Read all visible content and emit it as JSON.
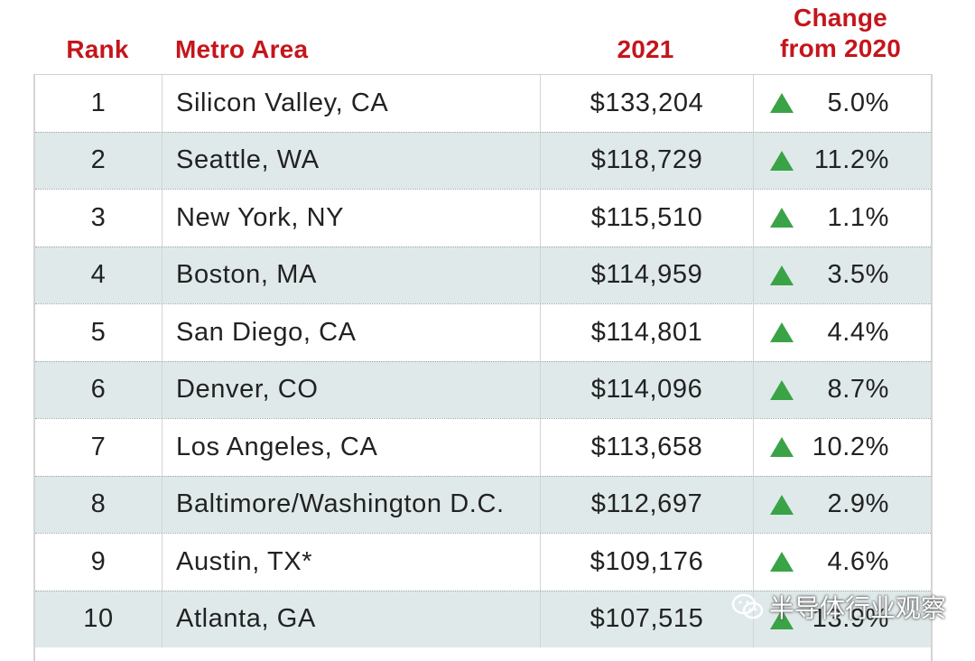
{
  "header": {
    "rank": "Rank",
    "metro": "Metro Area",
    "year": "2021",
    "change_line1": "Change",
    "change_line2": "from 2020"
  },
  "colors": {
    "header_text": "#c4161c",
    "alt_row": "#dfe9ea",
    "up_arrow": "#3aa346"
  },
  "rows": [
    {
      "rank": "1",
      "metro": "Silicon Valley, CA",
      "salary": "$133,204",
      "change": "5.0%",
      "direction": "up"
    },
    {
      "rank": "2",
      "metro": "Seattle, WA",
      "salary": "$118,729",
      "change": "11.2%",
      "direction": "up"
    },
    {
      "rank": "3",
      "metro": "New York, NY",
      "salary": "$115,510",
      "change": "1.1%",
      "direction": "up"
    },
    {
      "rank": "4",
      "metro": "Boston, MA",
      "salary": "$114,959",
      "change": "3.5%",
      "direction": "up"
    },
    {
      "rank": "5",
      "metro": "San Diego, CA",
      "salary": "$114,801",
      "change": "4.4%",
      "direction": "up"
    },
    {
      "rank": "6",
      "metro": "Denver, CO",
      "salary": "$114,096",
      "change": "8.7%",
      "direction": "up"
    },
    {
      "rank": "7",
      "metro": "Los Angeles, CA",
      "salary": "$113,658",
      "change": "10.2%",
      "direction": "up"
    },
    {
      "rank": "8",
      "metro": "Baltimore/Washington D.C.",
      "salary": "$112,697",
      "change": "2.9%",
      "direction": "up"
    },
    {
      "rank": "9",
      "metro": "Austin, TX*",
      "salary": "$109,176",
      "change": "4.6%",
      "direction": "up"
    },
    {
      "rank": "10",
      "metro": "Atlanta, GA",
      "salary": "$107,515",
      "change": "13.9%",
      "direction": "up"
    }
  ],
  "watermark": {
    "text": "半导体行业观察",
    "icon": "wechat-icon"
  }
}
